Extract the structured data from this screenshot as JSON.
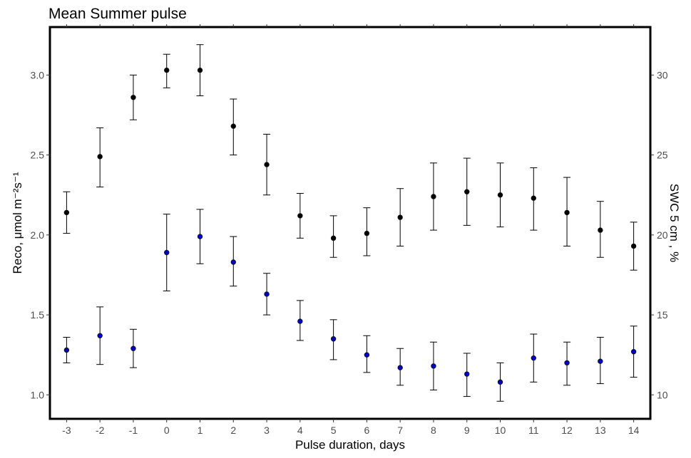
{
  "chart_data": {
    "type": "scatter",
    "title": "Mean Summer pulse",
    "xlabel": "Pulse duration, days",
    "ylabel_left": "Reco, μmol m⁻²s⁻¹",
    "ylabel_right": "SWC 5 cm , %",
    "xlim": [
      -3.5,
      14.5
    ],
    "ylim_left": [
      0.85,
      3.3
    ],
    "ylim_right": [
      8.5,
      33.0
    ],
    "x_ticks": [
      -3,
      -2,
      -1,
      0,
      1,
      2,
      3,
      4,
      5,
      6,
      7,
      8,
      9,
      10,
      11,
      12,
      13,
      14
    ],
    "y_ticks_left": [
      "1.0",
      "1.5",
      "2.0",
      "2.5",
      "3.0"
    ],
    "y_ticks_right": [
      "10",
      "15",
      "20",
      "25",
      "30"
    ],
    "grid": false,
    "series": [
      {
        "axis": "right",
        "color": "#000000",
        "x": [
          -3,
          -2,
          -1,
          0,
          1,
          2,
          3,
          4,
          5,
          6,
          7,
          8,
          9,
          10,
          11,
          12,
          13,
          14
        ],
        "y": [
          21.4,
          24.9,
          28.6,
          30.3,
          30.3,
          26.8,
          24.4,
          21.2,
          19.8,
          20.1,
          21.1,
          22.4,
          22.7,
          22.5,
          22.3,
          21.4,
          20.3,
          19.3
        ],
        "err_low": [
          20.1,
          23.0,
          27.2,
          29.2,
          28.7,
          25.0,
          22.5,
          19.8,
          18.6,
          18.7,
          19.3,
          20.3,
          20.6,
          20.5,
          20.3,
          19.3,
          18.6,
          17.8
        ],
        "err_high": [
          22.7,
          26.7,
          30.0,
          31.3,
          31.9,
          28.5,
          26.3,
          22.6,
          21.2,
          21.7,
          22.9,
          24.5,
          24.8,
          24.5,
          24.2,
          23.6,
          22.1,
          20.8
        ]
      },
      {
        "axis": "left",
        "color": "#0000cd",
        "x": [
          -3,
          -2,
          -1,
          0,
          1,
          2,
          3,
          4,
          5,
          6,
          7,
          8,
          9,
          10,
          11,
          12,
          13,
          14
        ],
        "y": [
          1.28,
          1.37,
          1.29,
          1.89,
          1.99,
          1.83,
          1.63,
          1.46,
          1.35,
          1.25,
          1.17,
          1.18,
          1.13,
          1.08,
          1.23,
          1.2,
          1.21,
          1.27
        ],
        "err_low": [
          1.2,
          1.19,
          1.17,
          1.65,
          1.82,
          1.68,
          1.5,
          1.34,
          1.22,
          1.14,
          1.06,
          1.03,
          0.99,
          0.96,
          1.08,
          1.06,
          1.07,
          1.11
        ],
        "err_high": [
          1.36,
          1.55,
          1.41,
          2.13,
          2.16,
          1.99,
          1.76,
          1.59,
          1.47,
          1.37,
          1.29,
          1.33,
          1.26,
          1.2,
          1.38,
          1.33,
          1.36,
          1.43
        ]
      }
    ]
  }
}
